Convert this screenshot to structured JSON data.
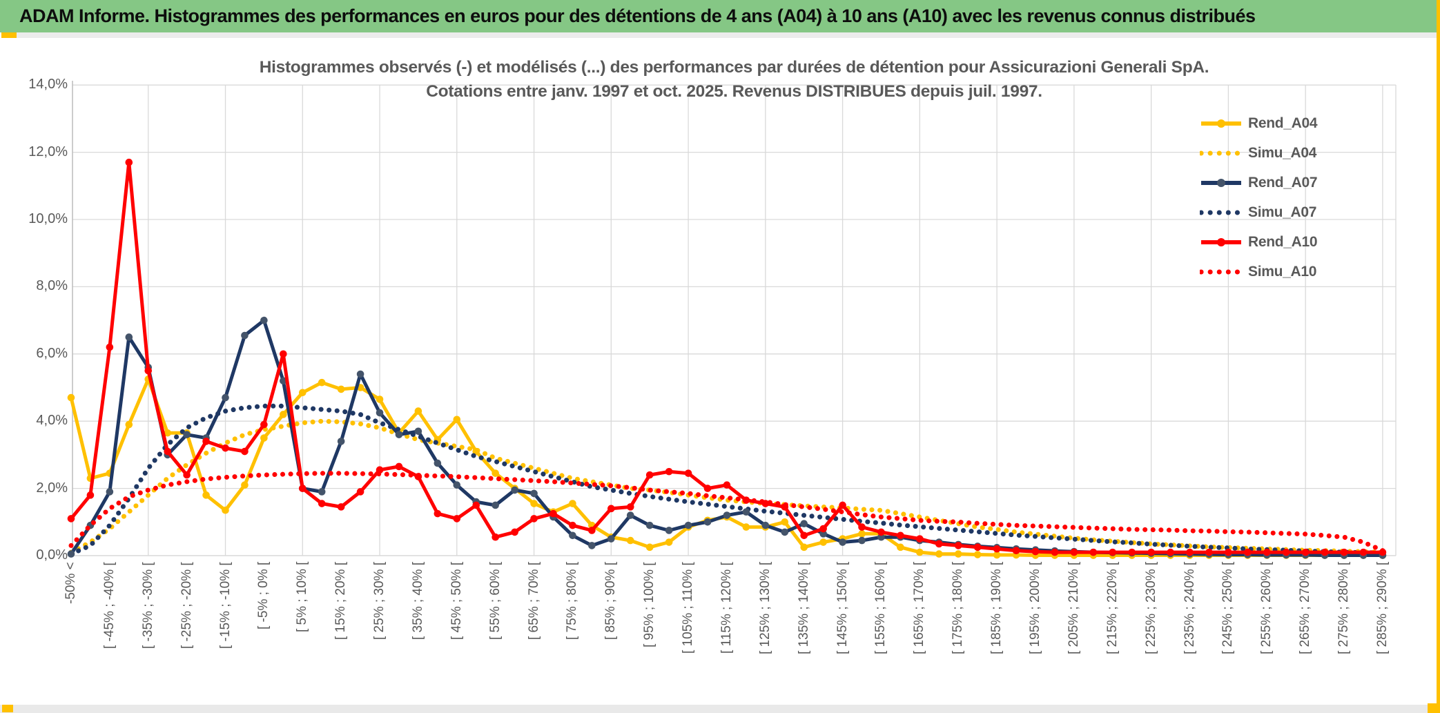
{
  "header": {
    "title": "ADAM Informe. Histogrammes des performances en euros pour des détentions de 4 ans (A04) à 10 ans (A10) avec les revenus connus distribués"
  },
  "chart": {
    "title_line1": "Histogrammes observés (-) et modélisés (...) des performances par durées de détention pour Assicurazioni Generali SpA.",
    "title_line2": "Cotations entre janv. 1997 et oct. 2025. Revenus DISTRIBUES depuis juil. 1997.",
    "y_ticks": [
      "14,0%",
      "12,0%",
      "10,0%",
      "8,0%",
      "6,0%",
      "4,0%",
      "2,0%",
      "0,0%"
    ],
    "colors": {
      "gold": "#FFC000",
      "navy": "#1F3864",
      "navy_marker": "#44546A",
      "red": "#FF0000",
      "grid": "#D9D9D9",
      "axis": "#BFBFBF",
      "text": "#595959",
      "header_green": "#85C785"
    },
    "legend": [
      {
        "label": "Rend_A04",
        "color": "#FFC000",
        "marker": "#FFC000",
        "style": "solid"
      },
      {
        "label": "Simu_A04",
        "color": "#FFC000",
        "style": "dotted"
      },
      {
        "label": "Rend_A07",
        "color": "#1F3864",
        "marker": "#44546A",
        "style": "solid"
      },
      {
        "label": "Simu_A07",
        "color": "#1F3864",
        "style": "dotted"
      },
      {
        "label": "Rend_A10",
        "color": "#FF0000",
        "marker": "#FF0000",
        "style": "solid"
      },
      {
        "label": "Simu_A10",
        "color": "#FF0000",
        "style": "dotted"
      }
    ]
  },
  "chart_data": {
    "type": "line",
    "title": "Histogrammes observés (-) et modélisés (...) des performances par durées de détention pour Assicurazioni Generali SpA. Cotations entre janv. 1997 et oct. 2025. Revenus DISTRIBUES depuis juil. 1997.",
    "xlabel": "",
    "ylabel": "",
    "ylim": [
      0,
      14
    ],
    "grid": true,
    "legend_position": "right-inside",
    "bin_width_pct": 5,
    "categories": [
      "-50% <",
      "",
      "[ -45% ; -40% [",
      "",
      "[ -35% ; -30% [",
      "",
      "[ -25% ; -20% [",
      "",
      "[ -15% ; -10% [",
      "",
      "[ -5% ; 0% [",
      "",
      "[ 5% ; 10% [",
      "",
      "[ 15% ; 20% [",
      "",
      "[ 25% ; 30% [",
      "",
      "[ 35% ; 40% [",
      "",
      "[ 45% ; 50% [",
      "",
      "[ 55% ; 60% [",
      "",
      "[ 65% ; 70% [",
      "",
      "[ 75% ; 80% [",
      "",
      "[ 85% ; 90% [",
      "",
      "[ 95% ; 100% [",
      "",
      "[ 105% ; 110% [",
      "",
      "[ 115% ; 120% [",
      "",
      "[ 125% ; 130% [",
      "",
      "[ 135% ; 140% [",
      "",
      "[ 145% ; 150% [",
      "",
      "[ 155% ; 160% [",
      "",
      "[ 165% ; 170% [",
      "",
      "[ 175% ; 180% [",
      "",
      "[ 185% ; 190% [",
      "",
      "[ 195% ; 200% [",
      "",
      "[ 205% ; 210% [",
      "",
      "[ 215% ; 220% [",
      "",
      "[ 225% ; 230% [",
      "",
      "[ 235% ; 240% [",
      "",
      "[ 245% ; 250% [",
      "",
      "[ 255% ; 260% [",
      "",
      "[ 265% ; 270% [",
      "",
      "[ 275% ; 280% [",
      "",
      "[ 285% ; 290% ["
    ],
    "series": [
      {
        "name": "Simu_A04",
        "style": "dotted",
        "color": "#FFC000",
        "values": [
          0.1,
          0.4,
          0.8,
          1.3,
          1.8,
          2.3,
          2.7,
          3.05,
          3.35,
          3.6,
          3.75,
          3.85,
          3.95,
          4.0,
          3.98,
          3.92,
          3.8,
          3.62,
          3.45,
          3.35,
          3.25,
          3.15,
          2.9,
          2.75,
          2.6,
          2.45,
          2.3,
          2.2,
          2.1,
          2.0,
          1.95,
          1.88,
          1.8,
          1.72,
          1.65,
          1.6,
          1.55,
          1.52,
          1.48,
          1.45,
          1.42,
          1.38,
          1.35,
          1.25,
          1.15,
          1.05,
          0.95,
          0.85,
          0.78,
          0.7,
          0.64,
          0.58,
          0.52,
          0.47,
          0.43,
          0.39,
          0.35,
          0.32,
          0.29,
          0.26,
          0.24,
          0.22,
          0.2,
          0.18,
          0.16,
          0.15,
          0.13,
          0.12,
          0.1
        ]
      },
      {
        "name": "Rend_A04",
        "style": "solid",
        "color": "#FFC000",
        "marker": "#FFC000",
        "values": [
          4.7,
          2.3,
          2.45,
          3.9,
          5.25,
          3.65,
          3.65,
          1.8,
          1.35,
          2.1,
          3.5,
          4.2,
          4.85,
          5.15,
          4.95,
          5.0,
          4.65,
          3.65,
          4.3,
          3.45,
          4.05,
          3.1,
          2.45,
          2.0,
          1.55,
          1.3,
          1.55,
          0.9,
          0.55,
          0.45,
          0.25,
          0.4,
          0.85,
          1.05,
          1.15,
          0.85,
          0.85,
          1.0,
          0.25,
          0.4,
          0.5,
          0.65,
          0.65,
          0.25,
          0.1,
          0.05,
          0.05,
          0.03,
          0.02,
          0.02,
          0.01,
          0.01,
          0.01,
          0.01,
          0.01,
          0.01,
          0.01,
          0.01,
          0.01,
          0.01,
          0.01,
          0.01,
          0.01,
          0.01,
          0.01,
          0.01,
          0.01,
          0.01,
          0.01
        ]
      },
      {
        "name": "Simu_A07",
        "style": "dotted",
        "color": "#1F3864",
        "values": [
          0.05,
          0.3,
          0.9,
          1.7,
          2.6,
          3.3,
          3.8,
          4.1,
          4.3,
          4.4,
          4.45,
          4.45,
          4.4,
          4.35,
          4.3,
          4.2,
          3.95,
          3.75,
          3.55,
          3.35,
          3.15,
          2.95,
          2.8,
          2.65,
          2.5,
          2.35,
          2.2,
          2.05,
          1.95,
          1.85,
          1.76,
          1.68,
          1.6,
          1.53,
          1.46,
          1.39,
          1.32,
          1.26,
          1.2,
          1.14,
          1.08,
          1.02,
          0.97,
          0.91,
          0.86,
          0.81,
          0.76,
          0.71,
          0.66,
          0.61,
          0.57,
          0.53,
          0.49,
          0.45,
          0.41,
          0.38,
          0.34,
          0.31,
          0.28,
          0.25,
          0.23,
          0.2,
          0.18,
          0.16,
          0.14,
          0.12,
          0.1,
          0.09,
          0.08
        ]
      },
      {
        "name": "Rend_A07",
        "style": "solid",
        "color": "#1F3864",
        "marker": "#44546A",
        "values": [
          0.05,
          0.9,
          1.9,
          6.5,
          5.6,
          3.0,
          3.6,
          3.5,
          4.7,
          6.55,
          7.0,
          5.2,
          2.0,
          1.9,
          3.4,
          5.4,
          4.25,
          3.6,
          3.7,
          2.75,
          2.1,
          1.6,
          1.5,
          1.95,
          1.85,
          1.15,
          0.6,
          0.3,
          0.5,
          1.2,
          0.9,
          0.75,
          0.9,
          1.0,
          1.2,
          1.3,
          0.9,
          0.7,
          0.95,
          0.65,
          0.4,
          0.45,
          0.55,
          0.55,
          0.45,
          0.4,
          0.33,
          0.28,
          0.24,
          0.2,
          0.17,
          0.14,
          0.12,
          0.1,
          0.09,
          0.08,
          0.07,
          0.06,
          0.05,
          0.04,
          0.03,
          0.03,
          0.02,
          0.02,
          0.02,
          0.01,
          0.01,
          0.01,
          0.01
        ]
      },
      {
        "name": "Simu_A10",
        "style": "dotted",
        "color": "#FF0000",
        "values": [
          0.3,
          0.9,
          1.4,
          1.75,
          1.95,
          2.1,
          2.2,
          2.28,
          2.33,
          2.37,
          2.4,
          2.42,
          2.44,
          2.45,
          2.45,
          2.44,
          2.43,
          2.41,
          2.39,
          2.37,
          2.35,
          2.32,
          2.29,
          2.26,
          2.23,
          2.2,
          2.16,
          2.12,
          2.08,
          2.02,
          1.95,
          1.9,
          1.85,
          1.78,
          1.72,
          1.66,
          1.6,
          1.52,
          1.45,
          1.38,
          1.3,
          1.22,
          1.15,
          1.1,
          1.05,
          1.02,
          1.0,
          0.96,
          0.93,
          0.9,
          0.88,
          0.86,
          0.84,
          0.82,
          0.8,
          0.78,
          0.77,
          0.76,
          0.74,
          0.73,
          0.71,
          0.7,
          0.68,
          0.66,
          0.64,
          0.6,
          0.55,
          0.4,
          0.15
        ]
      },
      {
        "name": "Rend_A10",
        "style": "solid",
        "color": "#FF0000",
        "marker": "#FF0000",
        "values": [
          1.1,
          1.8,
          6.2,
          11.7,
          5.5,
          3.1,
          2.4,
          3.4,
          3.2,
          3.1,
          3.9,
          6.0,
          2.0,
          1.55,
          1.45,
          1.9,
          2.55,
          2.65,
          2.35,
          1.25,
          1.1,
          1.5,
          0.55,
          0.7,
          1.1,
          1.25,
          0.9,
          0.75,
          1.4,
          1.45,
          2.4,
          2.5,
          2.45,
          2.0,
          2.1,
          1.65,
          1.55,
          1.45,
          0.6,
          0.8,
          1.5,
          0.85,
          0.7,
          0.6,
          0.5,
          0.35,
          0.3,
          0.25,
          0.2,
          0.15,
          0.12,
          0.1,
          0.1,
          0.1,
          0.1,
          0.1,
          0.1,
          0.1,
          0.1,
          0.1,
          0.1,
          0.1,
          0.1,
          0.1,
          0.1,
          0.1,
          0.1,
          0.1,
          0.1
        ]
      }
    ]
  }
}
